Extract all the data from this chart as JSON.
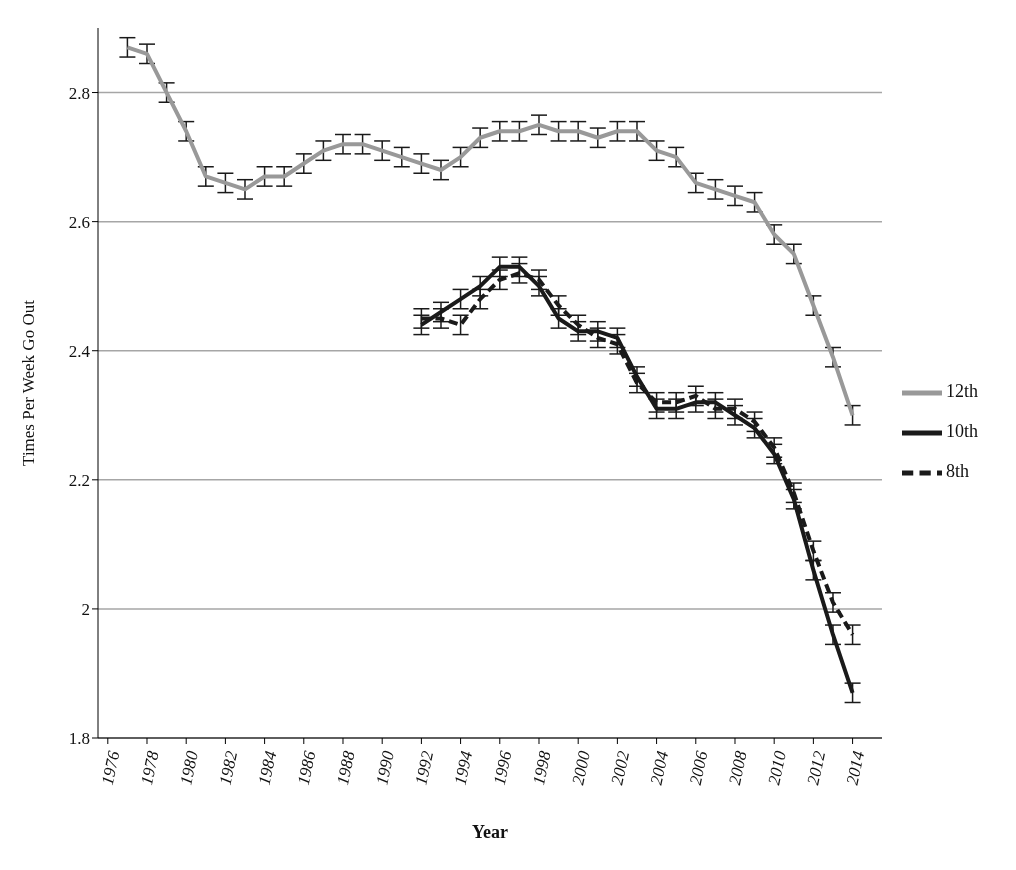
{
  "chart_data": {
    "type": "line",
    "xlabel": "Year",
    "ylabel": "Times Per Week Go Out",
    "x": [
      1977,
      1978,
      1979,
      1980,
      1981,
      1982,
      1983,
      1984,
      1985,
      1986,
      1987,
      1988,
      1989,
      1990,
      1991,
      1992,
      1993,
      1994,
      1995,
      1996,
      1997,
      1998,
      1999,
      2000,
      2001,
      2002,
      2003,
      2004,
      2005,
      2006,
      2007,
      2008,
      2009,
      2010,
      2011,
      2012,
      2013,
      2014
    ],
    "xlim": [
      1975.5,
      2015.5
    ],
    "xticks": [
      1976,
      1978,
      1980,
      1982,
      1984,
      1986,
      1988,
      1990,
      1992,
      1994,
      1996,
      1998,
      2000,
      2002,
      2004,
      2006,
      2008,
      2010,
      2012,
      2014
    ],
    "ylim": [
      1.8,
      2.9
    ],
    "yticks": [
      1.8,
      2,
      2.2,
      2.4,
      2.6,
      2.8
    ],
    "grid": "y",
    "legend": "right",
    "marker": "none",
    "series": [
      {
        "name": "12th",
        "color": "#999999",
        "line_style": "solid",
        "values": [
          2.87,
          2.86,
          2.8,
          2.74,
          2.67,
          2.66,
          2.65,
          2.67,
          2.67,
          2.69,
          2.71,
          2.72,
          2.72,
          2.71,
          2.7,
          2.69,
          2.68,
          2.7,
          2.73,
          2.74,
          2.74,
          2.75,
          2.74,
          2.74,
          2.73,
          2.74,
          2.74,
          2.71,
          2.7,
          2.66,
          2.65,
          2.64,
          2.63,
          2.58,
          2.55,
          2.47,
          2.39,
          2.3
        ],
        "errors": [
          0.015,
          0.015,
          0.015,
          0.015,
          0.015,
          0.015,
          0.015,
          0.015,
          0.015,
          0.015,
          0.015,
          0.015,
          0.015,
          0.015,
          0.015,
          0.015,
          0.015,
          0.015,
          0.015,
          0.015,
          0.015,
          0.015,
          0.015,
          0.015,
          0.015,
          0.015,
          0.015,
          0.015,
          0.015,
          0.015,
          0.015,
          0.015,
          0.015,
          0.015,
          0.015,
          0.015,
          0.015,
          0.015
        ]
      },
      {
        "name": "10th",
        "color": "#1a1a1a",
        "line_style": "solid",
        "values": [
          null,
          null,
          null,
          null,
          null,
          null,
          null,
          null,
          null,
          null,
          null,
          null,
          null,
          null,
          null,
          2.44,
          2.46,
          2.48,
          2.5,
          2.53,
          2.53,
          2.5,
          2.45,
          2.43,
          2.43,
          2.42,
          2.36,
          2.31,
          2.31,
          2.32,
          2.32,
          2.3,
          2.28,
          2.24,
          2.17,
          2.06,
          1.96,
          1.87
        ],
        "errors": [
          null,
          null,
          null,
          null,
          null,
          null,
          null,
          null,
          null,
          null,
          null,
          null,
          null,
          null,
          null,
          0.015,
          0.015,
          0.015,
          0.015,
          0.015,
          0.015,
          0.015,
          0.015,
          0.015,
          0.015,
          0.015,
          0.015,
          0.015,
          0.015,
          0.015,
          0.015,
          0.015,
          0.015,
          0.015,
          0.015,
          0.015,
          0.015,
          0.015
        ]
      },
      {
        "name": "8th",
        "color": "#1a1a1a",
        "line_style": "dashed",
        "values": [
          null,
          null,
          null,
          null,
          null,
          null,
          null,
          null,
          null,
          null,
          null,
          null,
          null,
          null,
          null,
          2.45,
          2.45,
          2.44,
          2.48,
          2.51,
          2.52,
          2.51,
          2.47,
          2.44,
          2.42,
          2.41,
          2.35,
          2.32,
          2.32,
          2.33,
          2.31,
          2.31,
          2.29,
          2.25,
          2.18,
          2.09,
          2.01,
          1.96
        ],
        "errors": [
          null,
          null,
          null,
          null,
          null,
          null,
          null,
          null,
          null,
          null,
          null,
          null,
          null,
          null,
          null,
          0.015,
          0.015,
          0.015,
          0.015,
          0.015,
          0.015,
          0.015,
          0.015,
          0.015,
          0.015,
          0.015,
          0.015,
          0.015,
          0.015,
          0.015,
          0.015,
          0.015,
          0.015,
          0.015,
          0.015,
          0.015,
          0.015,
          0.015
        ]
      }
    ]
  }
}
